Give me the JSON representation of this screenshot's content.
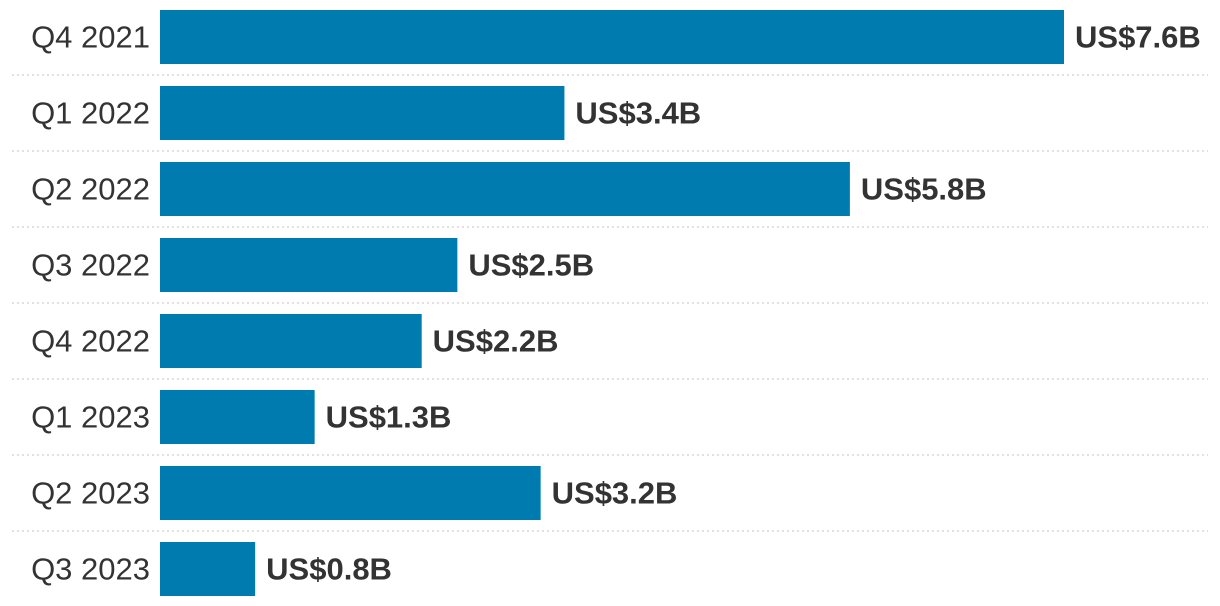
{
  "chart_data": {
    "type": "bar",
    "orientation": "horizontal",
    "title": "",
    "xlabel": "",
    "ylabel": "",
    "categories": [
      "Q4 2021",
      "Q1 2022",
      "Q2 2022",
      "Q3 2022",
      "Q4 2022",
      "Q1 2023",
      "Q2 2023",
      "Q3 2023"
    ],
    "values": [
      7.6,
      3.4,
      5.8,
      2.5,
      2.2,
      1.3,
      3.2,
      0.8
    ],
    "value_labels": [
      "US$7.6B",
      "US$3.4B",
      "US$5.8B",
      "US$2.5B",
      "US$2.2B",
      "US$1.3B",
      "US$3.2B",
      "US$0.8B"
    ],
    "unit": "US$ billions",
    "xlim": [
      0,
      7.6
    ],
    "grid": false,
    "legend": "none",
    "colors": {
      "bar": "#007bb0",
      "label": "#333333",
      "divider": "#cfcfcf"
    }
  }
}
